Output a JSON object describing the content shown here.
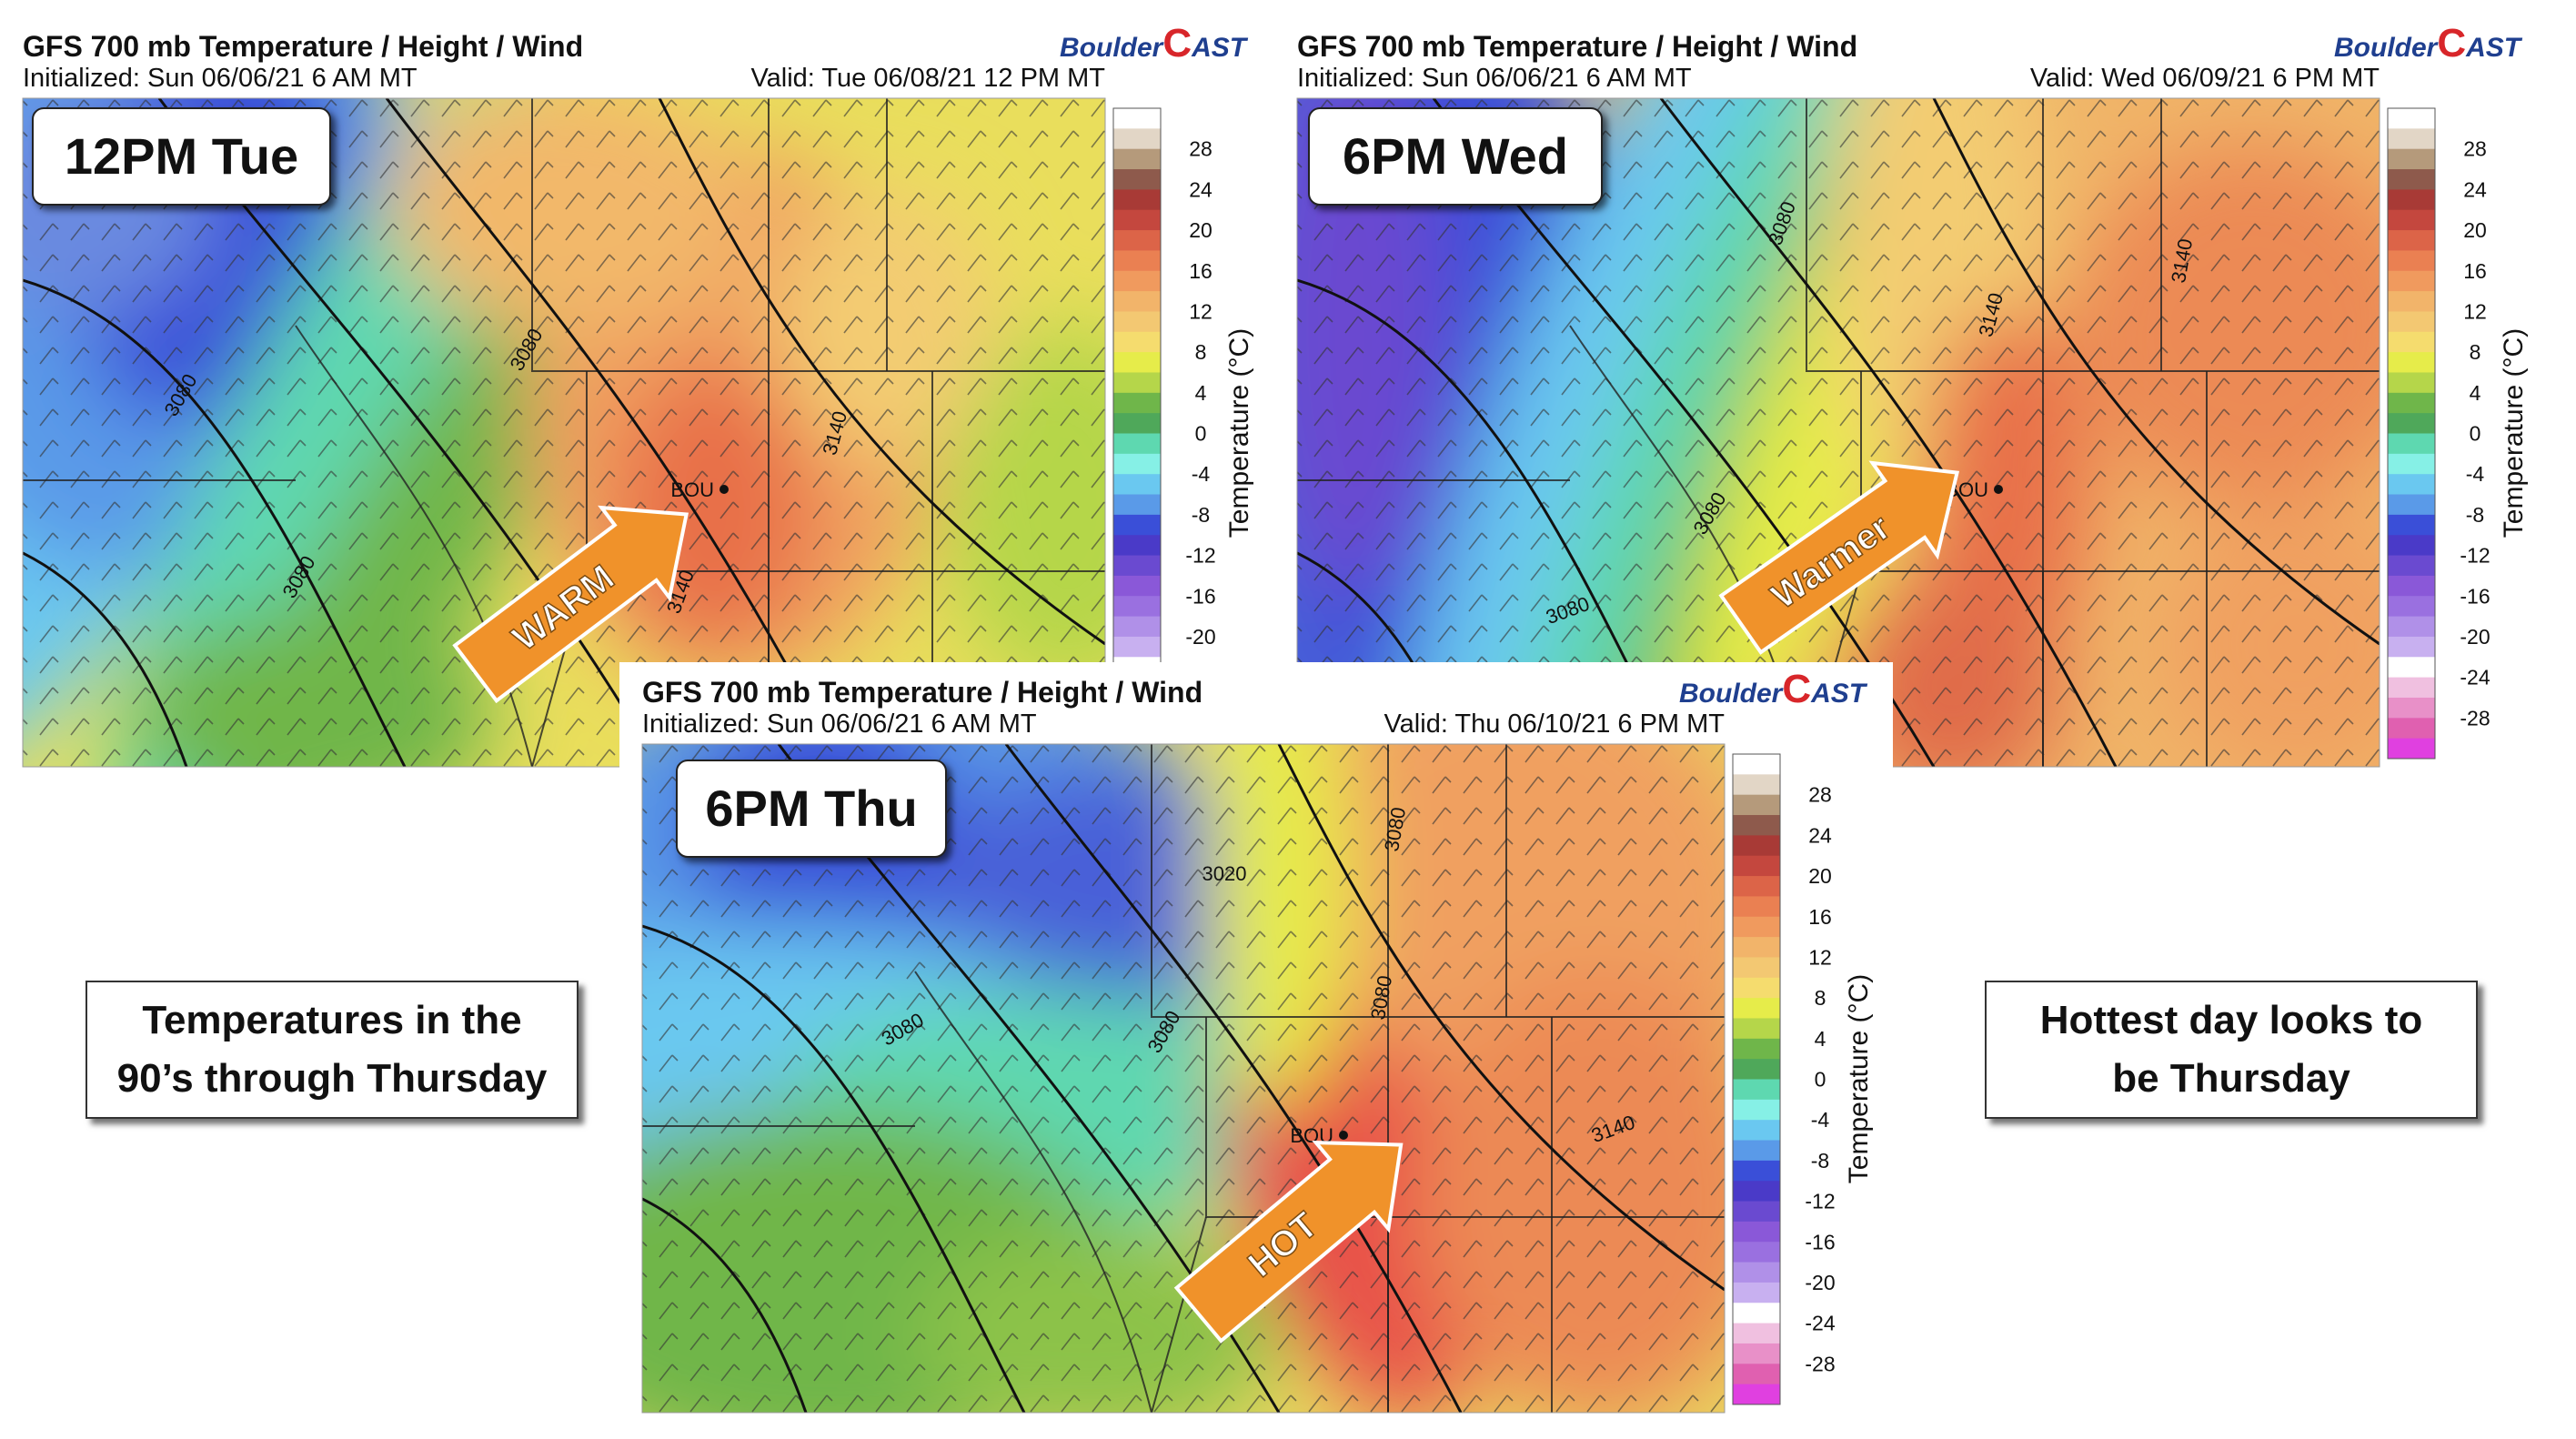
{
  "logo": [
    "Boulder",
    "C",
    "AST"
  ],
  "colorbar": {
    "label": "Temperature (°C)",
    "ticks": [
      28,
      24,
      20,
      16,
      12,
      8,
      4,
      0,
      -4,
      -8,
      -12,
      -16,
      -20,
      -24,
      -28
    ]
  },
  "panels": [
    {
      "title": "GFS 700 mb Temperature / Height / Wind",
      "initialized": "Initialized: Sun 06/06/21 6 AM MT",
      "valid": "Valid: Tue 06/08/21 12 PM MT",
      "badge": "12PM Tue",
      "arrow": "WARM",
      "station": "BOU",
      "contours": [
        "3080",
        "3080",
        "3080",
        "3140",
        "3140",
        "3080"
      ]
    },
    {
      "title": "GFS 700 mb Temperature / Height / Wind",
      "initialized": "Initialized: Sun 06/06/21 6 AM MT",
      "valid": "Valid: Wed 06/09/21 6 PM MT",
      "badge": "6PM Wed",
      "arrow": "Warmer",
      "station": "BOU",
      "contours": [
        "3080",
        "3140",
        "3080",
        "3080",
        "3140"
      ]
    },
    {
      "title": "GFS 700 mb Temperature / Height / Wind",
      "initialized": "Initialized: Sun 06/06/21 6 AM MT",
      "valid": "Valid: Thu 06/10/21 6 PM MT",
      "badge": "6PM Thu",
      "arrow": "HOT",
      "station": "BOU",
      "contours": [
        "3020",
        "3080",
        "3080",
        "3080",
        "3080",
        "3140"
      ]
    }
  ],
  "notes": [
    "Temperatures in the 90’s through Thursday",
    "Hottest day looks to be Thursday"
  ]
}
